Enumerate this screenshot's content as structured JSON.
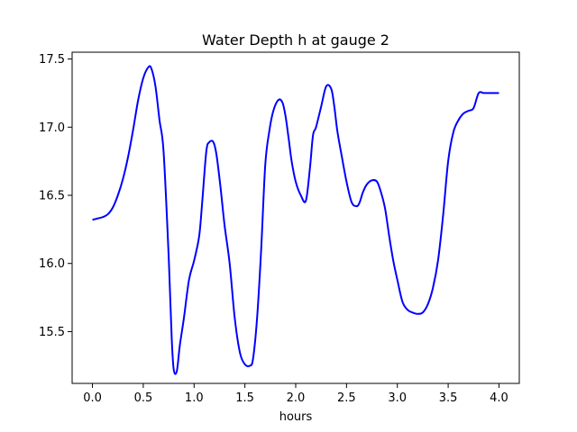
{
  "chart_data": {
    "type": "line",
    "title": "Water Depth h at gauge 2",
    "xlabel": "hours",
    "ylabel": "",
    "xlim": [
      -0.2,
      4.2
    ],
    "ylim": [
      15.12,
      17.55
    ],
    "xticks": [
      "0.0",
      "0.5",
      "1.0",
      "1.5",
      "2.0",
      "2.5",
      "3.0",
      "3.5",
      "4.0"
    ],
    "yticks": [
      "15.5",
      "16.0",
      "16.5",
      "17.0",
      "17.5"
    ],
    "grid": false,
    "line_color": "#0000ff",
    "series": [
      {
        "x": [
          0.0,
          0.05,
          0.1,
          0.15,
          0.2,
          0.25,
          0.3,
          0.35,
          0.4,
          0.45,
          0.5,
          0.55,
          0.58,
          0.62,
          0.66,
          0.7,
          0.75,
          0.78,
          0.8,
          0.83,
          0.86,
          0.9,
          0.95,
          1.0,
          1.05,
          1.08,
          1.12,
          1.15,
          1.19,
          1.22,
          1.26,
          1.3,
          1.35,
          1.4,
          1.45,
          1.5,
          1.55,
          1.58,
          1.62,
          1.66,
          1.7,
          1.74,
          1.78,
          1.83,
          1.87,
          1.9,
          1.93,
          1.96,
          2.0,
          2.05,
          2.1,
          2.14,
          2.17,
          2.2,
          2.25,
          2.3,
          2.35,
          2.38,
          2.41,
          2.45,
          2.5,
          2.55,
          2.6,
          2.63,
          2.66,
          2.7,
          2.75,
          2.8,
          2.84,
          2.88,
          2.92,
          2.96,
          3.0,
          3.05,
          3.1,
          3.15,
          3.2,
          3.25,
          3.3,
          3.35,
          3.4,
          3.45,
          3.5,
          3.55,
          3.6,
          3.65,
          3.7,
          3.75,
          3.8,
          3.85,
          3.9,
          3.95,
          4.0
        ],
        "values": [
          16.32,
          16.33,
          16.34,
          16.36,
          16.41,
          16.5,
          16.62,
          16.78,
          16.98,
          17.2,
          17.36,
          17.44,
          17.43,
          17.3,
          17.05,
          16.82,
          16.05,
          15.45,
          15.22,
          15.21,
          15.4,
          15.6,
          15.88,
          16.02,
          16.2,
          16.45,
          16.82,
          16.89,
          16.89,
          16.8,
          16.56,
          16.28,
          16.0,
          15.6,
          15.35,
          15.26,
          15.25,
          15.3,
          15.6,
          16.1,
          16.72,
          16.97,
          17.12,
          17.2,
          17.18,
          17.08,
          16.92,
          16.75,
          16.6,
          16.5,
          16.46,
          16.7,
          16.94,
          17.0,
          17.15,
          17.3,
          17.28,
          17.15,
          16.97,
          16.8,
          16.6,
          16.45,
          16.42,
          16.45,
          16.52,
          16.58,
          16.61,
          16.6,
          16.52,
          16.4,
          16.2,
          16.02,
          15.88,
          15.72,
          15.66,
          15.64,
          15.63,
          15.64,
          15.7,
          15.82,
          16.02,
          16.35,
          16.75,
          16.96,
          17.05,
          17.1,
          17.12,
          17.14,
          17.25,
          17.25,
          17.25,
          17.25,
          17.25
        ]
      }
    ]
  }
}
